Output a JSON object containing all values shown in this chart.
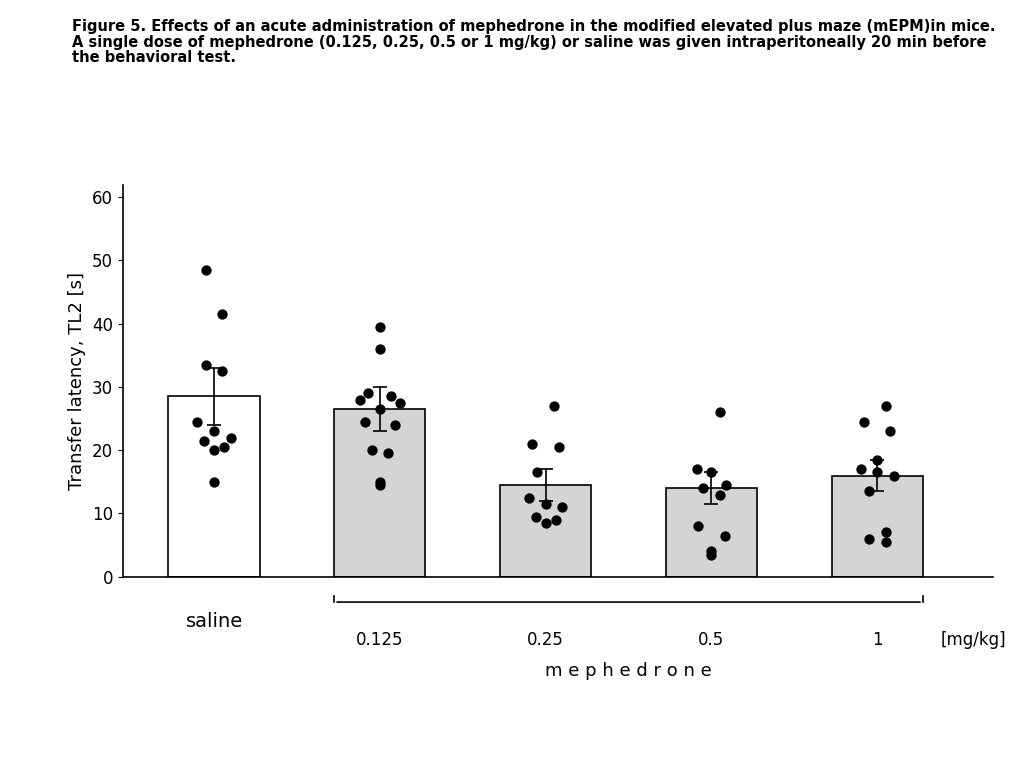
{
  "ylabel": "Transfer latency, TL2 [s]",
  "ylim": [
    0,
    62
  ],
  "yticks": [
    0,
    10,
    20,
    30,
    40,
    50,
    60
  ],
  "bar_means": [
    28.5,
    26.5,
    14.5,
    14.0,
    16.0
  ],
  "bar_errors": [
    4.5,
    3.5,
    2.5,
    2.5,
    2.5
  ],
  "bar_colors": [
    "#ffffff",
    "#d4d4d4",
    "#d4d4d4",
    "#d4d4d4",
    "#d4d4d4"
  ],
  "bar_edgecolors": [
    "#000000",
    "#000000",
    "#000000",
    "#000000",
    "#000000"
  ],
  "categories": [
    "saline",
    "0.125",
    "0.25",
    "0.5",
    "1"
  ],
  "dot_data": {
    "saline": [
      48.5,
      41.5,
      33.5,
      32.5,
      24.5,
      23.0,
      22.0,
      21.5,
      20.5,
      20.0,
      15.0
    ],
    "0.125": [
      39.5,
      36.0,
      29.0,
      28.5,
      28.0,
      27.5,
      26.5,
      24.5,
      24.0,
      20.0,
      19.5,
      15.0,
      14.5
    ],
    "0.25": [
      27.0,
      21.0,
      20.5,
      16.5,
      12.5,
      11.5,
      11.0,
      9.5,
      9.0,
      8.5
    ],
    "0.5": [
      26.0,
      17.0,
      16.5,
      14.5,
      14.0,
      13.0,
      8.0,
      6.5,
      4.0,
      3.5
    ],
    "1": [
      27.0,
      24.5,
      23.0,
      18.5,
      17.0,
      16.5,
      16.0,
      13.5,
      7.0,
      6.0,
      5.5
    ]
  },
  "dot_offsets": {
    "saline": [
      -0.05,
      0.05,
      -0.05,
      0.05,
      -0.1,
      0.0,
      0.1,
      -0.06,
      0.06,
      0.0,
      0.0
    ],
    "0.125": [
      0.0,
      0.0,
      -0.07,
      0.07,
      -0.12,
      0.12,
      0.0,
      -0.09,
      0.09,
      -0.05,
      0.05,
      0.0,
      0.0
    ],
    "0.25": [
      0.05,
      -0.08,
      0.08,
      -0.05,
      -0.1,
      0.0,
      0.1,
      -0.06,
      0.06,
      0.0
    ],
    "0.5": [
      0.05,
      -0.09,
      0.0,
      0.09,
      -0.05,
      0.05,
      -0.08,
      0.08,
      0.0,
      0.0
    ],
    "1": [
      0.05,
      -0.08,
      0.08,
      0.0,
      -0.1,
      0.0,
      0.1,
      -0.05,
      0.05,
      -0.05,
      0.05
    ]
  },
  "background_color": "#ffffff",
  "dot_size": 55,
  "dot_color": "#000000",
  "bar_width": 0.55,
  "caption_line1": "Figure 5. Effects of an acute administration of mephedrone in the modified elevated plus maze (mEPM)in mice.",
  "caption_line2": "A single dose of mephedrone (0.125, 0.25, 0.5 or 1 mg/kg) or saline was given intraperitoneally 20 min before",
  "caption_line3": "the behavioral test.",
  "mephedrone_label": "m e p h e d r o n e",
  "mgkg_label": "[mg/kg]",
  "saline_label": "saline",
  "dose_labels": [
    "0.125",
    "0.25",
    "0.5",
    "1"
  ]
}
